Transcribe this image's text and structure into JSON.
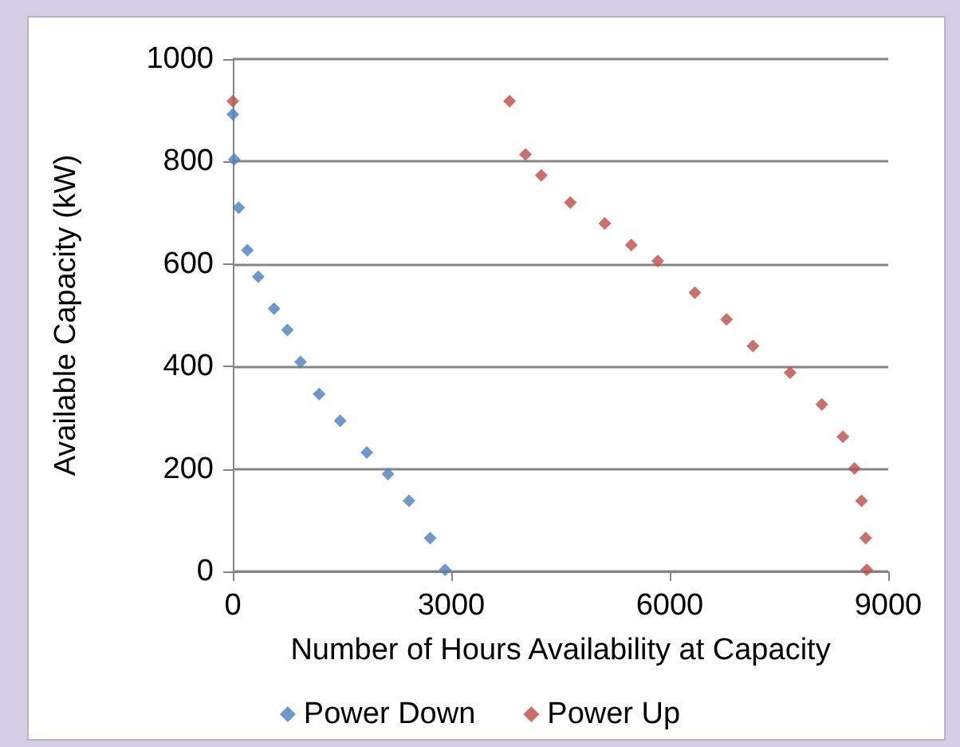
{
  "chart_data": {
    "type": "scatter",
    "xlabel": "Number of Hours Availability at Capacity",
    "ylabel": "Available Capacity (kW)",
    "xlim": [
      0,
      9000
    ],
    "xticks": [
      0,
      3000,
      6000,
      9000
    ],
    "ylim": [
      0,
      1000
    ],
    "yticks": [
      0,
      200,
      400,
      600,
      800,
      1000
    ],
    "grid": "y",
    "legend": "bottom",
    "marker": "diamond",
    "series": [
      {
        "name": "Power Down",
        "color": "#4a7ebb",
        "x": [
          0,
          20,
          80,
          200,
          350,
          565,
          750,
          930,
          1185,
          1475,
          1840,
          2130,
          2420,
          2710,
          2915
        ],
        "values": [
          892,
          804,
          710,
          627,
          575,
          513,
          471,
          409,
          346,
          294,
          232,
          190,
          138,
          65,
          3
        ]
      },
      {
        "name": "Power Up",
        "color": "#be4b48",
        "x": [
          0,
          3800,
          4018,
          4236,
          4635,
          5108,
          5472,
          5835,
          6344,
          6780,
          7142,
          7652,
          8088,
          8378,
          8537,
          8633,
          8690,
          8705
        ],
        "values": [
          918,
          918,
          814,
          773,
          720,
          679,
          637,
          606,
          544,
          492,
          440,
          388,
          326,
          263,
          201,
          138,
          65,
          3
        ]
      }
    ]
  }
}
